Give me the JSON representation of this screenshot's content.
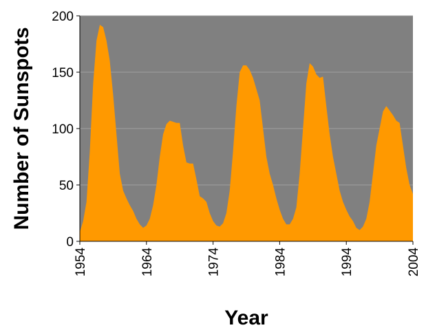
{
  "chart_data": {
    "type": "area",
    "title": "",
    "xlabel": "Year",
    "ylabel": "Number of Sunspots",
    "xlim": [
      1954,
      2004
    ],
    "ylim": [
      0,
      200
    ],
    "x_ticks": [
      "1954",
      "1964",
      "1974",
      "1984",
      "1994",
      "2004"
    ],
    "y_ticks": [
      "0",
      "50",
      "100",
      "150",
      "200"
    ],
    "grid": true,
    "legend": "none",
    "colors": {
      "plot_background": "#808080",
      "fill": "#FF9900",
      "gridline": "#A0A0A0",
      "axis": "#000000"
    },
    "series": [
      {
        "x": [
          1954.0,
          1954.5,
          1955.0,
          1955.5,
          1956.0,
          1956.5,
          1957.0,
          1957.5,
          1958.0,
          1958.5,
          1959.0,
          1959.5,
          1960.0,
          1960.5,
          1961.0,
          1961.5,
          1962.0,
          1962.5,
          1963.0,
          1963.5,
          1964.0,
          1964.5,
          1965.0,
          1965.5,
          1966.0,
          1966.5,
          1967.0,
          1967.5,
          1968.0,
          1968.5,
          1969.0,
          1969.5,
          1970.0,
          1970.5,
          1971.0,
          1971.5,
          1972.0,
          1972.5,
          1973.0,
          1973.5,
          1974.0,
          1974.5,
          1975.0,
          1975.5,
          1976.0,
          1976.5,
          1977.0,
          1977.5,
          1978.0,
          1978.5,
          1979.0,
          1979.5,
          1980.0,
          1980.5,
          1981.0,
          1981.5,
          1982.0,
          1982.5,
          1983.0,
          1983.5,
          1984.0,
          1984.5,
          1985.0,
          1985.5,
          1986.0,
          1986.5,
          1987.0,
          1987.5,
          1988.0,
          1988.5,
          1989.0,
          1989.5,
          1990.0,
          1990.5,
          1991.0,
          1991.5,
          1992.0,
          1992.5,
          1993.0,
          1993.5,
          1994.0,
          1994.5,
          1995.0,
          1995.5,
          1996.0,
          1996.5,
          1997.0,
          1997.5,
          1998.0,
          1998.5,
          1999.0,
          1999.5,
          2000.0,
          2000.5,
          2001.0,
          2001.5,
          2002.0,
          2002.5,
          2003.0,
          2003.5,
          2004.0
        ],
        "values": [
          8,
          18,
          35,
          80,
          140,
          178,
          192,
          190,
          178,
          160,
          130,
          95,
          60,
          45,
          38,
          32,
          27,
          20,
          15,
          12,
          14,
          20,
          32,
          50,
          75,
          95,
          104,
          107,
          106,
          105,
          105,
          85,
          70,
          69,
          69,
          55,
          40,
          38,
          35,
          25,
          18,
          14,
          13,
          16,
          25,
          45,
          80,
          120,
          150,
          156,
          156,
          152,
          145,
          135,
          125,
          100,
          75,
          60,
          50,
          38,
          28,
          20,
          15,
          15,
          20,
          30,
          60,
          100,
          140,
          158,
          155,
          148,
          145,
          146,
          120,
          95,
          75,
          60,
          45,
          35,
          28,
          22,
          18,
          12,
          10,
          13,
          20,
          35,
          60,
          85,
          100,
          115,
          120,
          116,
          112,
          107,
          105,
          85,
          65,
          50,
          42
        ]
      }
    ]
  }
}
